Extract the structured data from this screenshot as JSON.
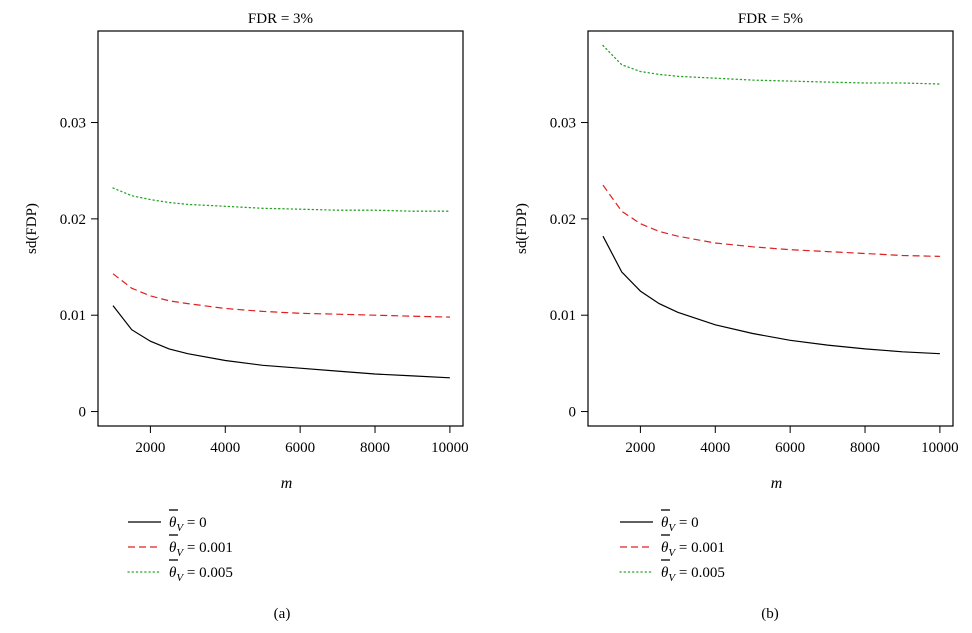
{
  "chart_data": [
    {
      "type": "line",
      "title": "FDR = 3%",
      "caption": "(a)",
      "xlabel": "m",
      "ylabel": "sd(FDP)",
      "xlim": [
        600,
        10350
      ],
      "ylim": [
        -0.0015,
        0.0395
      ],
      "xticks": [
        "2000",
        "4000",
        "6000",
        "8000",
        "10000"
      ],
      "yticks": [
        "0",
        "0.01",
        "0.02",
        "0.03"
      ],
      "series": [
        {
          "name": "0",
          "color": "#000000",
          "dash": "solid",
          "x": [
            1000,
            1500,
            2000,
            2500,
            3000,
            4000,
            5000,
            6000,
            7000,
            8000,
            9000,
            10000
          ],
          "y": [
            0.011,
            0.0085,
            0.0073,
            0.0065,
            0.006,
            0.0053,
            0.0048,
            0.0045,
            0.0042,
            0.0039,
            0.0037,
            0.0035
          ]
        },
        {
          "name": "0.001",
          "color": "#df2020",
          "dash": "dashed",
          "x": [
            1000,
            1500,
            2000,
            2500,
            3000,
            4000,
            5000,
            6000,
            7000,
            8000,
            9000,
            10000
          ],
          "y": [
            0.0143,
            0.0128,
            0.012,
            0.0115,
            0.0112,
            0.0107,
            0.0104,
            0.0102,
            0.0101,
            0.01,
            0.0099,
            0.0098
          ]
        },
        {
          "name": "0.005",
          "color": "#2aa52a",
          "dash": "dotted",
          "x": [
            1000,
            1500,
            2000,
            2500,
            3000,
            4000,
            5000,
            6000,
            7000,
            8000,
            9000,
            10000
          ],
          "y": [
            0.0232,
            0.0224,
            0.022,
            0.0217,
            0.0215,
            0.0213,
            0.0211,
            0.021,
            0.0209,
            0.0209,
            0.0208,
            0.0208
          ]
        }
      ]
    },
    {
      "type": "line",
      "title": "FDR = 5%",
      "caption": "(b)",
      "xlabel": "m",
      "ylabel": "sd(FDP)",
      "xlim": [
        600,
        10350
      ],
      "ylim": [
        -0.0015,
        0.0395
      ],
      "xticks": [
        "2000",
        "4000",
        "6000",
        "8000",
        "10000"
      ],
      "yticks": [
        "0",
        "0.01",
        "0.02",
        "0.03"
      ],
      "series": [
        {
          "name": "0",
          "color": "#000000",
          "dash": "solid",
          "x": [
            1000,
            1500,
            2000,
            2500,
            3000,
            4000,
            5000,
            6000,
            7000,
            8000,
            9000,
            10000
          ],
          "y": [
            0.0182,
            0.0145,
            0.0125,
            0.0112,
            0.0103,
            0.009,
            0.0081,
            0.0074,
            0.0069,
            0.0065,
            0.0062,
            0.006
          ]
        },
        {
          "name": "0.001",
          "color": "#df2020",
          "dash": "dashed",
          "x": [
            1000,
            1500,
            2000,
            2500,
            3000,
            4000,
            5000,
            6000,
            7000,
            8000,
            9000,
            10000
          ],
          "y": [
            0.0235,
            0.0208,
            0.0195,
            0.0187,
            0.0182,
            0.0175,
            0.0171,
            0.0168,
            0.0166,
            0.0164,
            0.0162,
            0.0161
          ]
        },
        {
          "name": "0.005",
          "color": "#2aa52a",
          "dash": "dotted",
          "x": [
            1000,
            1500,
            2000,
            2500,
            3000,
            4000,
            5000,
            6000,
            7000,
            8000,
            9000,
            10000
          ],
          "y": [
            0.038,
            0.036,
            0.0353,
            0.035,
            0.0348,
            0.0346,
            0.0344,
            0.0343,
            0.0342,
            0.0341,
            0.0341,
            0.034
          ]
        }
      ]
    }
  ],
  "legend": {
    "symbol": "θ",
    "subscript": "V",
    "equals": "="
  }
}
